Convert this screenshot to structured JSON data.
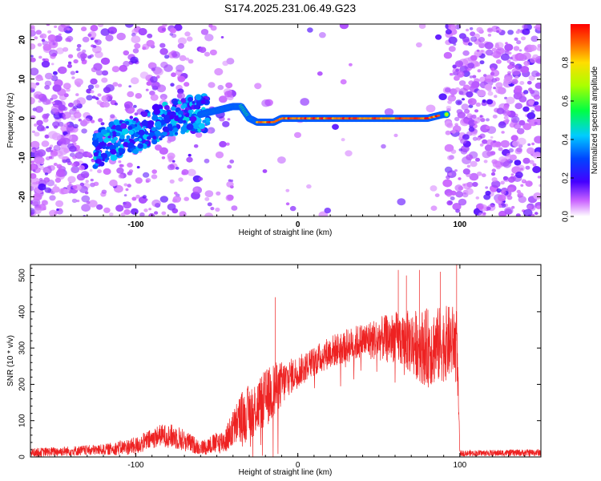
{
  "title": "S174.2025.231.06.49.G23",
  "chart_data": [
    {
      "type": "heatmap",
      "xlabel": "Height of straight line (km)",
      "ylabel": "Frequency (Hz)",
      "xlim": [
        -165,
        150
      ],
      "ylim": [
        -25,
        24
      ],
      "xticks": [
        -100,
        0,
        100
      ],
      "yticks": [
        -20,
        -10,
        0,
        10,
        20
      ],
      "colorbar": {
        "label": "Normalized spectral amplitude",
        "range": [
          0,
          1
        ],
        "ticks": [
          "0.0",
          "0.2",
          "0.4",
          "0.6",
          "0.8"
        ]
      },
      "ridge": [
        {
          "x": -120,
          "y": -7
        },
        {
          "x": -110,
          "y": -5
        },
        {
          "x": -100,
          "y": -4
        },
        {
          "x": -90,
          "y": -2
        },
        {
          "x": -80,
          "y": 0
        },
        {
          "x": -70,
          "y": 1
        },
        {
          "x": -60,
          "y": 1
        },
        {
          "x": -50,
          "y": 2
        },
        {
          "x": -40,
          "y": 3
        },
        {
          "x": -35,
          "y": 3
        },
        {
          "x": -30,
          "y": 0
        },
        {
          "x": -25,
          "y": -1
        },
        {
          "x": -20,
          "y": -1
        },
        {
          "x": -15,
          "y": -1
        },
        {
          "x": -10,
          "y": 0
        },
        {
          "x": 0,
          "y": 0
        },
        {
          "x": 20,
          "y": 0
        },
        {
          "x": 40,
          "y": 0
        },
        {
          "x": 60,
          "y": 0
        },
        {
          "x": 80,
          "y": 0
        },
        {
          "x": 90,
          "y": 1
        }
      ]
    },
    {
      "type": "line",
      "xlabel": "Height of straight line (km)",
      "ylabel": "SNR (10 * v/v)",
      "xlim": [
        -165,
        150
      ],
      "ylim": [
        0,
        530
      ],
      "xticks": [
        -100,
        0,
        100
      ],
      "yticks": [
        0,
        100,
        200,
        300,
        400,
        500
      ],
      "series": [
        {
          "name": "SNR",
          "color": "#ee2222",
          "envelope": [
            {
              "x": -165,
              "base": 12,
              "noise": 12
            },
            {
              "x": -120,
              "base": 20,
              "noise": 15
            },
            {
              "x": -100,
              "base": 30,
              "noise": 25
            },
            {
              "x": -85,
              "base": 60,
              "noise": 30
            },
            {
              "x": -75,
              "base": 55,
              "noise": 35
            },
            {
              "x": -60,
              "base": 25,
              "noise": 20
            },
            {
              "x": -45,
              "base": 45,
              "noise": 35
            },
            {
              "x": -35,
              "base": 110,
              "noise": 70
            },
            {
              "x": -25,
              "base": 140,
              "noise": 80
            },
            {
              "x": -15,
              "base": 180,
              "noise": 80
            },
            {
              "x": -5,
              "base": 220,
              "noise": 50
            },
            {
              "x": 5,
              "base": 250,
              "noise": 40
            },
            {
              "x": 20,
              "base": 290,
              "noise": 45
            },
            {
              "x": 40,
              "base": 320,
              "noise": 50
            },
            {
              "x": 60,
              "base": 330,
              "noise": 70
            },
            {
              "x": 80,
              "base": 300,
              "noise": 110
            },
            {
              "x": 98,
              "base": 320,
              "noise": 100
            },
            {
              "x": 100,
              "base": 10,
              "noise": 8
            },
            {
              "x": 150,
              "base": 12,
              "noise": 10
            }
          ],
          "peaks": [
            {
              "x": -14,
              "y": 440
            },
            {
              "x": 62,
              "y": 515
            },
            {
              "x": 67,
              "y": 500
            },
            {
              "x": 75,
              "y": 515
            },
            {
              "x": 88,
              "y": 510
            },
            {
              "x": 98,
              "y": 530
            }
          ]
        }
      ]
    }
  ]
}
